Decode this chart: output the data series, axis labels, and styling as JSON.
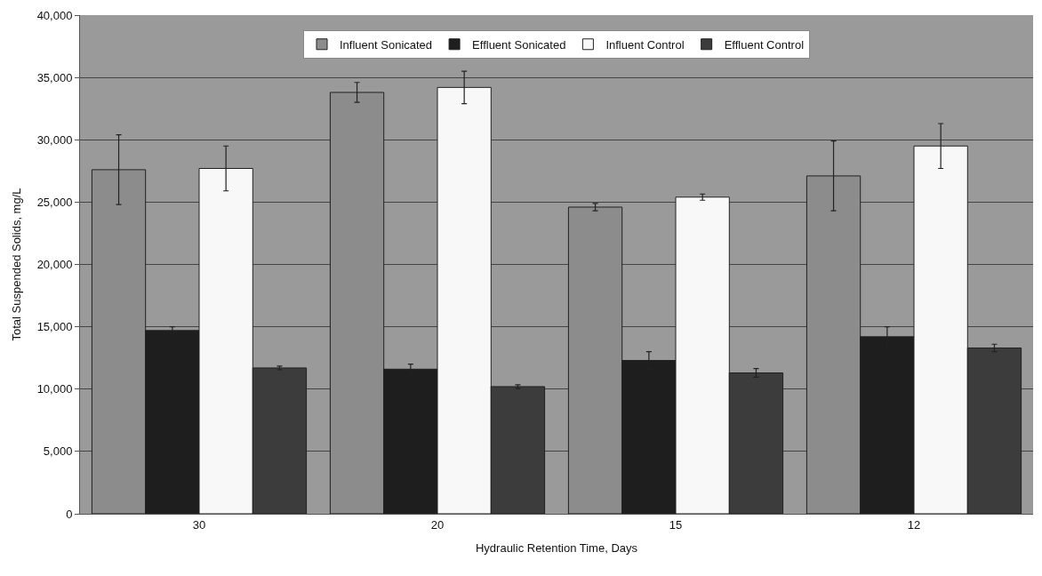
{
  "chart_data": {
    "type": "bar",
    "xlabel": "Hydraulic Retention Time, Days",
    "ylabel": "Total Suspended Solids, mg/L",
    "categories": [
      "30",
      "20",
      "15",
      "12"
    ],
    "series": [
      {
        "name": "Influent Sonicated",
        "color": "#8c8c8c",
        "values": [
          27600,
          33800,
          24600,
          27100
        ],
        "errors": [
          2800,
          800,
          300,
          2800
        ]
      },
      {
        "name": "Effluent Sonicated",
        "color": "#1e1e1e",
        "values": [
          14700,
          11600,
          12300,
          14200
        ],
        "errors": [
          300,
          400,
          700,
          800
        ]
      },
      {
        "name": "Influent Control",
        "color": "#f8f8f8",
        "values": [
          27700,
          34200,
          25400,
          29500
        ],
        "errors": [
          1800,
          1300,
          250,
          1800
        ]
      },
      {
        "name": "Effluent Control",
        "color": "#3c3c3c",
        "values": [
          11700,
          10200,
          11300,
          13300
        ],
        "errors": [
          150,
          150,
          350,
          300
        ]
      }
    ],
    "ylim": [
      0,
      40000
    ],
    "yticks": [
      {
        "value": 0,
        "label": "0"
      },
      {
        "value": 5000,
        "label": "5,000"
      },
      {
        "value": 10000,
        "label": "10,000"
      },
      {
        "value": 15000,
        "label": "15,000"
      },
      {
        "value": 20000,
        "label": "20,000"
      },
      {
        "value": 25000,
        "label": "25,000"
      },
      {
        "value": 30000,
        "label": "30,000"
      },
      {
        "value": 35000,
        "label": "35,000"
      },
      {
        "value": 40000,
        "label": "40,000"
      }
    ],
    "grid": "y",
    "legend": "top"
  }
}
